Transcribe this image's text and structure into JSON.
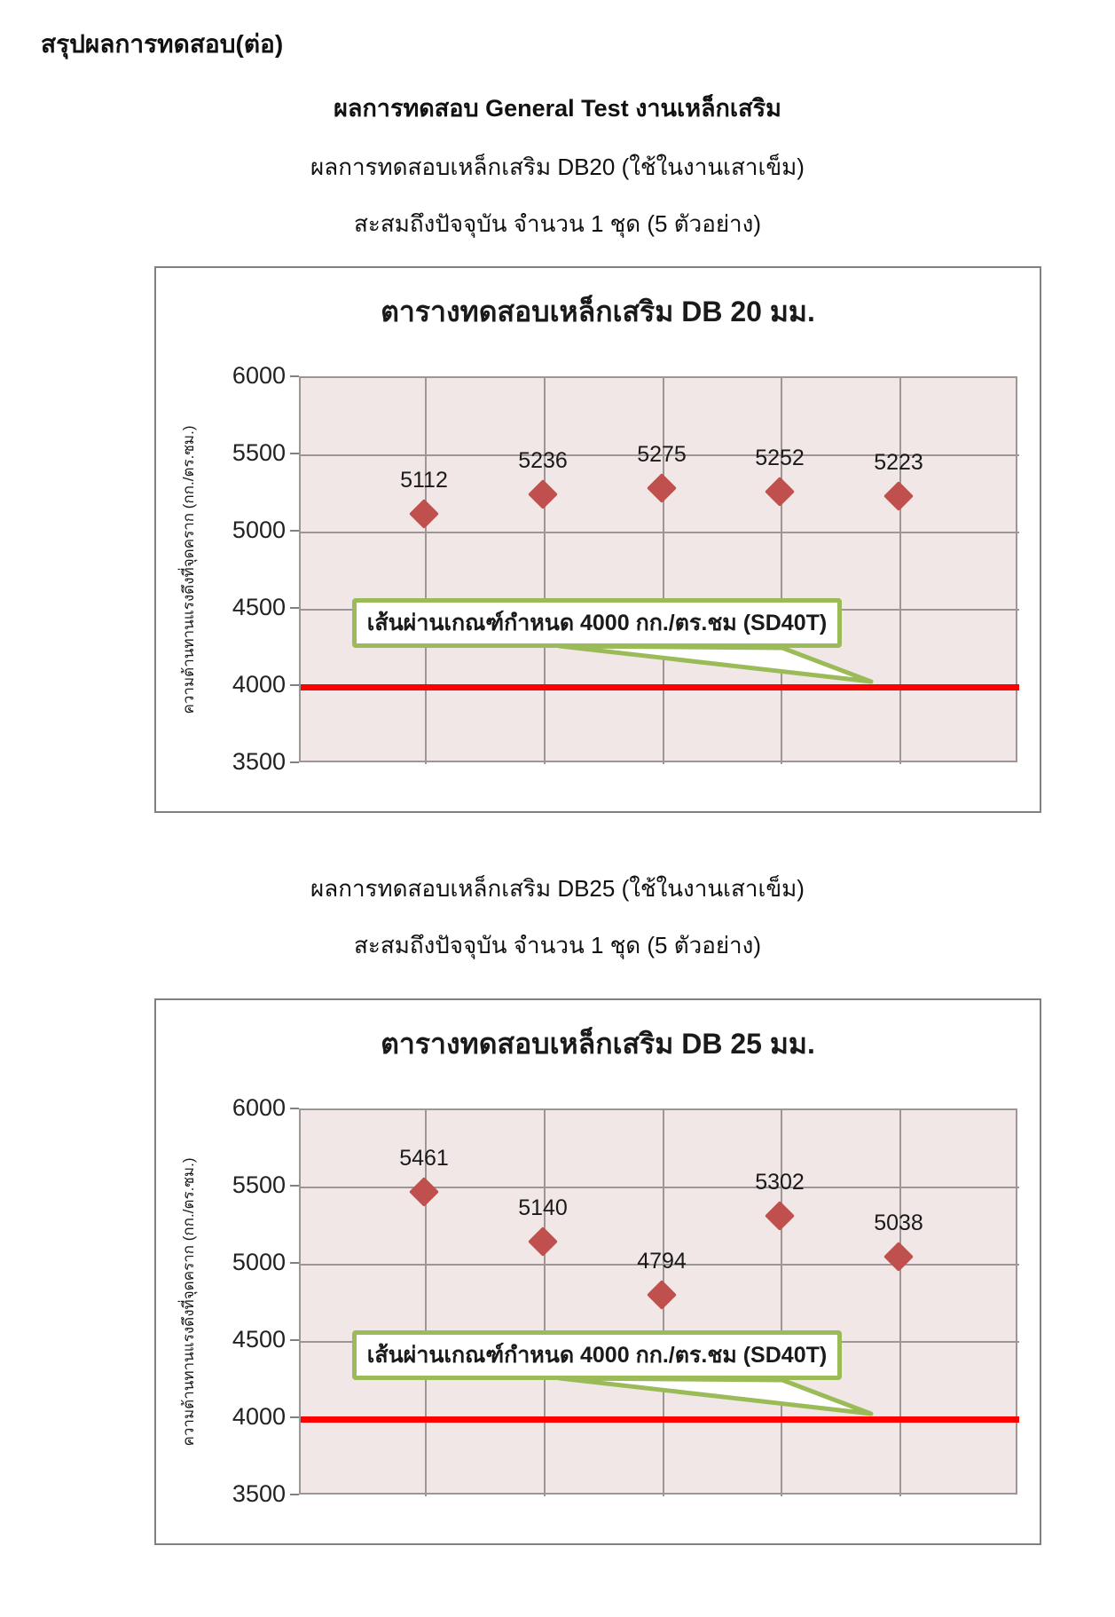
{
  "page": {
    "heading": "สรุปผลการทดสอบ(ต่อ)",
    "subtitle": "ผลการทดสอบ General Test งานเหล็กเสริม",
    "section1": {
      "line1": "ผลการทดสอบเหล็กเสริม DB20 (ใช้ในงานเสาเข็ม)",
      "line2": "สะสมถึงปัจจุบัน จำนวน 1 ชุด (5 ตัวอย่าง)"
    },
    "section2": {
      "line1": "ผลการทดสอบเหล็กเสริม DB25 (ใช้ในงานเสาเข็ม)",
      "line2": "สะสมถึงปัจจุบัน จำนวน 1 ชุด (5 ตัวอย่าง)"
    }
  },
  "colors": {
    "marker": "#c0504d",
    "plot_bg": "#f2e7e7",
    "grid": "#9e9695",
    "ref_line": "#ff0000",
    "callout_border": "#9bbb59",
    "axis": "#808080"
  },
  "chart_data": [
    {
      "type": "scatter",
      "title": "ตารางทดสอบเหล็กเสริม DB 20 มม.",
      "ylabel": "ความต้านทานแรงดึงที่จุดคราก  (กก./ตร.ซม.)",
      "x": [
        1,
        2,
        3,
        4,
        5
      ],
      "values": [
        5112,
        5236,
        5275,
        5252,
        5223
      ],
      "ylim": [
        3500,
        6000
      ],
      "yticks": [
        6000,
        5500,
        5000,
        4500,
        4000,
        3500
      ],
      "grid": true,
      "legend": "none",
      "ref_line": {
        "value": 4000,
        "label": "เส้นผ่านเกณฑ์กำหนด 4000 กก./ตร.ชม (SD40T)"
      }
    },
    {
      "type": "scatter",
      "title": "ตารางทดสอบเหล็กเสริม DB 25 มม.",
      "ylabel": "ความต้านทานแรงดึงที่จุดคราก  (กก./ตร.ซม.)",
      "x": [
        1,
        2,
        3,
        4,
        5
      ],
      "values": [
        5461,
        5140,
        4794,
        5302,
        5038
      ],
      "ylim": [
        3500,
        6000
      ],
      "yticks": [
        6000,
        5500,
        5000,
        4500,
        4000,
        3500
      ],
      "grid": true,
      "legend": "none",
      "ref_line": {
        "value": 4000,
        "label": "เส้นผ่านเกณฑ์กำหนด 4000 กก./ตร.ชม (SD40T)"
      }
    }
  ]
}
